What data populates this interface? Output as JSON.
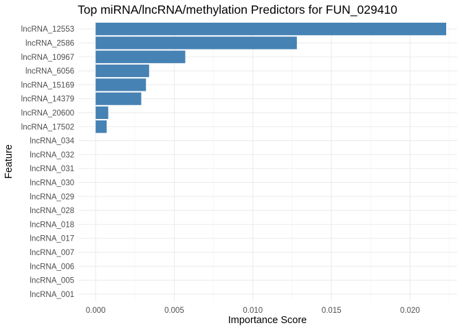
{
  "chart_data": {
    "type": "bar",
    "orientation": "horizontal",
    "title": "Top miRNA/lncRNA/methylation Predictors for FUN_029410",
    "xlabel": "Importance Score",
    "ylabel": "Feature",
    "xlim": [
      -0.0011,
      0.023
    ],
    "xticks": [
      0.0,
      0.005,
      0.01,
      0.015,
      0.02
    ],
    "xtick_labels": [
      "0.000",
      "0.005",
      "0.010",
      "0.015",
      "0.020"
    ],
    "grid": true,
    "bar_color": "#4682b4",
    "categories": [
      "lncRNA_12553",
      "lncRNA_2586",
      "lncRNA_10967",
      "lncRNA_6056",
      "lncRNA_15169",
      "lncRNA_14379",
      "lncRNA_20600",
      "lncRNA_17502",
      "lncRNA_034",
      "lncRNA_032",
      "lncRNA_031",
      "lncRNA_030",
      "lncRNA_029",
      "lncRNA_028",
      "lncRNA_018",
      "lncRNA_017",
      "lncRNA_007",
      "lncRNA_006",
      "lncRNA_005",
      "lncRNA_001"
    ],
    "values": [
      0.0223,
      0.0128,
      0.0057,
      0.0034,
      0.0032,
      0.0029,
      0.0008,
      0.0007,
      0,
      0,
      0,
      0,
      0,
      0,
      0,
      0,
      0,
      0,
      0,
      0
    ]
  }
}
